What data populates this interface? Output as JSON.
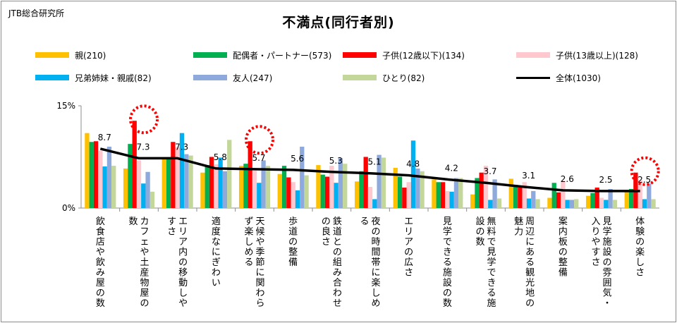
{
  "header": {
    "org": "JTB総合研究所",
    "title": "不満点(同行者別)"
  },
  "chart_data": {
    "type": "bar",
    "title": "不満点(同行者別)",
    "ylim": [
      0,
      15
    ],
    "y_ticks": [
      "15%",
      "0%"
    ],
    "categories": [
      "飲食店や飲み屋の数",
      "カフェや土産物屋の数",
      "エリア内の移動しやすさ",
      "適度なにぎわい",
      "天候や季節に関わらず楽しめる",
      "歩道の整備",
      "鉄道との組み合わせの良さ",
      "夜の時間帯に楽しめる",
      "エリアの広さ",
      "見学できる施設の数",
      "無料で見学できる施設の数",
      "周辺にある観光地の魅力",
      "案内板の整備",
      "見学施設の雰囲気・入りやすさ",
      "体験の楽しさ"
    ],
    "series": [
      {
        "name": "親(210)",
        "color": "#ffc000",
        "values": [
          11.0,
          5.8,
          7.3,
          5.2,
          6.2,
          5.0,
          6.3,
          3.9,
          5.9,
          4.2,
          2.0,
          4.3,
          1.5,
          1.8,
          2.4
        ]
      },
      {
        "name": "配偶者・パートナー(573)",
        "color": "#00b050",
        "values": [
          9.7,
          9.4,
          7.3,
          6.3,
          6.5,
          6.2,
          4.9,
          5.4,
          4.6,
          3.8,
          4.4,
          3.4,
          3.7,
          2.2,
          2.8
        ]
      },
      {
        "name": "子供(12歳以下)(134)",
        "color": "#ff0000",
        "values": [
          9.8,
          12.8,
          9.7,
          7.5,
          9.8,
          4.5,
          4.6,
          7.5,
          3.0,
          3.8,
          5.2,
          3.0,
          2.3,
          3.0,
          5.2
        ]
      },
      {
        "name": "子供(13歳以上)(128)",
        "color": "#ffc7ce",
        "values": [
          8.4,
          7.0,
          8.9,
          6.4,
          5.5,
          3.8,
          6.2,
          3.1,
          3.8,
          2.5,
          6.2,
          3.8,
          4.0,
          1.5,
          4.1
        ]
      },
      {
        "name": "兄弟姉妹・親戚(82)",
        "color": "#00b0f0",
        "values": [
          6.1,
          3.6,
          11.0,
          7.4,
          3.7,
          2.6,
          3.7,
          1.3,
          9.9,
          2.4,
          1.2,
          1.4,
          1.2,
          1.2,
          1.3
        ]
      },
      {
        "name": "友人(247)",
        "color": "#8ea9db",
        "values": [
          9.0,
          5.3,
          7.9,
          5.4,
          7.0,
          9.0,
          7.3,
          7.8,
          5.8,
          4.4,
          4.2,
          2.5,
          1.2,
          2.8,
          3.6
        ]
      },
      {
        "name": "ひとり(82)",
        "color": "#c4d79b",
        "values": [
          6.2,
          2.4,
          7.7,
          10.0,
          6.2,
          4.8,
          6.5,
          7.4,
          5.4,
          4.4,
          1.4,
          1.3,
          1.3,
          1.2,
          1.3
        ]
      }
    ],
    "total": {
      "name": "全体(1030)",
      "color": "#000000",
      "values": [
        8.7,
        7.3,
        7.3,
        5.8,
        5.7,
        5.6,
        5.3,
        5.1,
        4.8,
        4.2,
        3.7,
        3.1,
        2.6,
        2.5,
        2.5
      ],
      "labels": [
        "8.7",
        "7.3",
        "7.3",
        "5.8",
        "5.7",
        "5.6",
        "5.3",
        "5.1",
        "4.8",
        "4.2",
        "3.7",
        "3.1",
        "2.6",
        "2.5",
        "2.5"
      ]
    },
    "highlighted_categories": [
      1,
      4,
      14
    ],
    "highlight_color": "#ff0000",
    "legend_position": "top",
    "grid": false
  }
}
